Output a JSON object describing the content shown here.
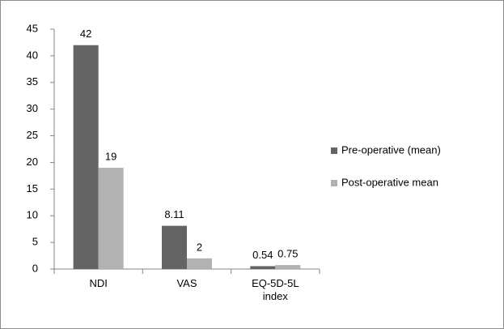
{
  "chart_data": {
    "type": "bar",
    "categories": [
      "NDI",
      "VAS",
      "EQ-5D-5L index"
    ],
    "series": [
      {
        "name": "Pre-operative (mean)",
        "color": "#646464",
        "values": [
          42,
          8.11,
          0.54
        ]
      },
      {
        "name": "Post-operative mean",
        "color": "#b2b2b2",
        "values": [
          19,
          2,
          0.75
        ]
      }
    ],
    "ylim": [
      0,
      45
    ],
    "yticks": [
      0,
      5,
      10,
      15,
      20,
      25,
      30,
      35,
      40,
      45
    ],
    "grid": false,
    "legend": "right"
  }
}
